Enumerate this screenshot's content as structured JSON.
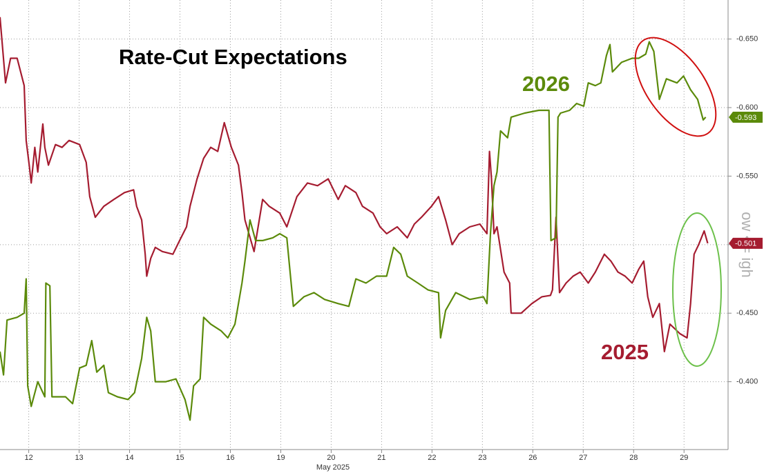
{
  "chart_data": {
    "type": "line",
    "title": "Rate-Cut Expectations",
    "y_axis_label": "ow <= igh",
    "x_axis_label": "May 2025",
    "ylim": [
      -0.35,
      -0.68
    ],
    "yticks": [
      {
        "value": -0.65,
        "label": "-0.650"
      },
      {
        "value": -0.6,
        "label": "-0.600"
      },
      {
        "value": -0.55,
        "label": "-0.550"
      },
      {
        "value": -0.5,
        "label": "-0.500"
      },
      {
        "value": -0.45,
        "label": "-0.450"
      },
      {
        "value": -0.4,
        "label": "-0.400"
      }
    ],
    "xlim": [
      -0.07,
      14.36
    ],
    "xticks": [
      {
        "value": 0.5,
        "label": "12"
      },
      {
        "value": 1.5,
        "label": "13"
      },
      {
        "value": 2.5,
        "label": "14"
      },
      {
        "value": 3.5,
        "label": "15"
      },
      {
        "value": 4.5,
        "label": "16"
      },
      {
        "value": 5.5,
        "label": "19"
      },
      {
        "value": 6.5,
        "label": "20"
      },
      {
        "value": 7.5,
        "label": "21"
      },
      {
        "value": 8.5,
        "label": "22"
      },
      {
        "value": 9.5,
        "label": "23"
      },
      {
        "value": 10.5,
        "label": "26"
      },
      {
        "value": 11.5,
        "label": "27"
      },
      {
        "value": 12.5,
        "label": "28"
      },
      {
        "value": 13.5,
        "label": "29"
      }
    ],
    "grid": true,
    "series": [
      {
        "name": "2025",
        "color": "#a51c30",
        "x": [
          -0.07,
          0.04,
          0.14,
          0.27,
          0.41,
          0.45,
          0.51,
          0.55,
          0.62,
          0.68,
          0.78,
          0.82,
          0.89,
          1.03,
          1.16,
          1.3,
          1.51,
          1.64,
          1.71,
          1.82,
          1.99,
          2.19,
          2.4,
          2.58,
          2.64,
          2.74,
          2.81,
          2.84,
          2.92,
          3.01,
          3.15,
          3.36,
          3.52,
          3.63,
          3.7,
          3.84,
          3.97,
          4.11,
          4.25,
          4.38,
          4.52,
          4.66,
          4.73,
          4.79,
          4.97,
          5.14,
          5.27,
          5.48,
          5.62,
          5.82,
          6.03,
          6.23,
          6.44,
          6.64,
          6.78,
          6.99,
          7.12,
          7.33,
          7.47,
          7.6,
          7.81,
          8.01,
          8.15,
          8.29,
          8.49,
          8.63,
          8.77,
          8.9,
          9.04,
          9.25,
          9.45,
          9.59,
          9.64,
          9.68,
          9.73,
          9.79,
          9.93,
          10.04,
          10.07,
          10.27,
          10.48,
          10.68,
          10.85,
          10.89,
          10.96,
          11.03,
          11.16,
          11.3,
          11.44,
          11.6,
          11.74,
          11.92,
          12.05,
          12.19,
          12.33,
          12.47,
          12.6,
          12.7,
          12.78,
          12.88,
          13.01,
          13.11,
          13.22,
          13.42,
          13.56,
          13.63,
          13.7,
          13.79,
          13.9,
          13.97
        ],
        "values": [
          -0.666,
          -0.618,
          -0.636,
          -0.636,
          -0.616,
          -0.576,
          -0.558,
          -0.545,
          -0.571,
          -0.553,
          -0.588,
          -0.571,
          -0.558,
          -0.573,
          -0.571,
          -0.576,
          -0.573,
          -0.56,
          -0.535,
          -0.52,
          -0.528,
          -0.533,
          -0.538,
          -0.54,
          -0.528,
          -0.518,
          -0.493,
          -0.477,
          -0.49,
          -0.498,
          -0.495,
          -0.493,
          -0.505,
          -0.513,
          -0.528,
          -0.548,
          -0.563,
          -0.571,
          -0.568,
          -0.589,
          -0.571,
          -0.558,
          -0.538,
          -0.518,
          -0.495,
          -0.533,
          -0.528,
          -0.523,
          -0.513,
          -0.535,
          -0.545,
          -0.543,
          -0.548,
          -0.533,
          -0.543,
          -0.538,
          -0.528,
          -0.523,
          -0.513,
          -0.508,
          -0.513,
          -0.505,
          -0.515,
          -0.52,
          -0.528,
          -0.535,
          -0.518,
          -0.5,
          -0.508,
          -0.513,
          -0.515,
          -0.508,
          -0.568,
          -0.548,
          -0.508,
          -0.513,
          -0.48,
          -0.472,
          -0.45,
          -0.45,
          -0.457,
          -0.462,
          -0.463,
          -0.467,
          -0.52,
          -0.465,
          -0.472,
          -0.477,
          -0.48,
          -0.472,
          -0.48,
          -0.493,
          -0.488,
          -0.48,
          -0.477,
          -0.472,
          -0.482,
          -0.488,
          -0.462,
          -0.447,
          -0.457,
          -0.422,
          -0.442,
          -0.435,
          -0.432,
          -0.457,
          -0.493,
          -0.5,
          -0.51,
          -0.501
        ]
      },
      {
        "name": "2026",
        "color": "#5b8a0a",
        "x": [
          -0.07,
          0.0,
          0.07,
          0.27,
          0.41,
          0.45,
          0.48,
          0.55,
          0.68,
          0.82,
          0.84,
          0.92,
          0.96,
          1.1,
          1.23,
          1.37,
          1.51,
          1.64,
          1.75,
          1.85,
          1.99,
          2.08,
          2.26,
          2.47,
          2.6,
          2.74,
          2.84,
          2.92,
          3.01,
          3.22,
          3.42,
          3.6,
          3.7,
          3.77,
          3.9,
          3.97,
          4.11,
          4.32,
          4.45,
          4.59,
          4.73,
          4.79,
          4.89,
          5.0,
          5.14,
          5.34,
          5.48,
          5.62,
          5.75,
          5.96,
          6.16,
          6.37,
          6.64,
          6.85,
          6.99,
          7.19,
          7.4,
          7.6,
          7.74,
          7.88,
          8.01,
          8.22,
          8.42,
          8.63,
          8.67,
          8.77,
          8.97,
          9.25,
          9.52,
          9.59,
          9.66,
          9.73,
          9.79,
          9.86,
          10.0,
          10.07,
          10.34,
          10.62,
          10.82,
          10.86,
          10.96,
          11.0,
          11.05,
          11.23,
          11.37,
          11.51,
          11.6,
          11.74,
          11.85,
          11.96,
          12.03,
          12.08,
          12.26,
          12.47,
          12.6,
          12.74,
          12.81,
          12.9,
          13.01,
          13.15,
          13.36,
          13.49,
          13.63,
          13.77,
          13.88,
          13.93
        ],
        "values": [
          -0.422,
          -0.405,
          -0.445,
          -0.447,
          -0.45,
          -0.475,
          -0.397,
          -0.382,
          -0.4,
          -0.389,
          -0.472,
          -0.47,
          -0.389,
          -0.389,
          -0.389,
          -0.384,
          -0.41,
          -0.412,
          -0.43,
          -0.407,
          -0.412,
          -0.392,
          -0.389,
          -0.387,
          -0.392,
          -0.417,
          -0.447,
          -0.437,
          -0.4,
          -0.4,
          -0.402,
          -0.387,
          -0.372,
          -0.397,
          -0.402,
          -0.447,
          -0.442,
          -0.437,
          -0.432,
          -0.442,
          -0.472,
          -0.488,
          -0.518,
          -0.503,
          -0.503,
          -0.505,
          -0.508,
          -0.505,
          -0.455,
          -0.462,
          -0.465,
          -0.46,
          -0.457,
          -0.455,
          -0.475,
          -0.472,
          -0.477,
          -0.477,
          -0.498,
          -0.493,
          -0.477,
          -0.472,
          -0.467,
          -0.465,
          -0.432,
          -0.452,
          -0.465,
          -0.46,
          -0.462,
          -0.457,
          -0.508,
          -0.543,
          -0.553,
          -0.583,
          -0.578,
          -0.593,
          -0.596,
          -0.598,
          -0.598,
          -0.503,
          -0.505,
          -0.593,
          -0.596,
          -0.598,
          -0.603,
          -0.601,
          -0.618,
          -0.616,
          -0.618,
          -0.638,
          -0.646,
          -0.626,
          -0.633,
          -0.636,
          -0.636,
          -0.639,
          -0.648,
          -0.641,
          -0.606,
          -0.621,
          -0.618,
          -0.623,
          -0.613,
          -0.606,
          -0.591,
          -0.593
        ]
      }
    ]
  }
}
